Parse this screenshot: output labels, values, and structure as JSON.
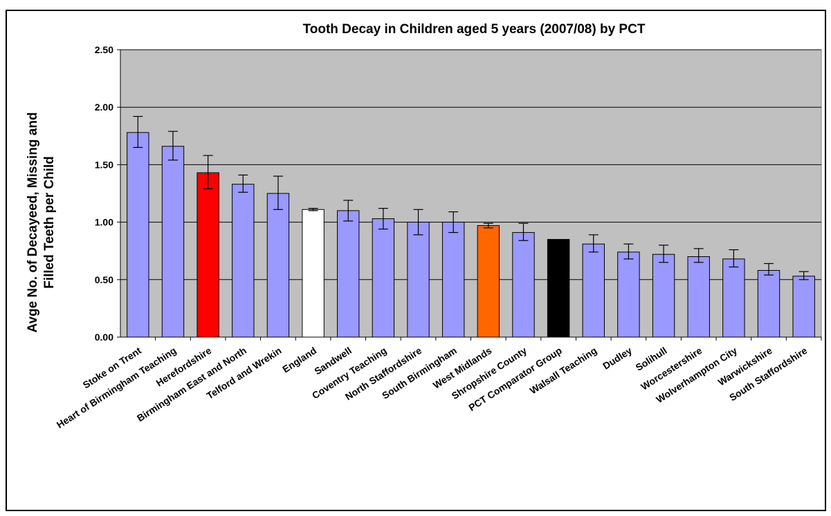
{
  "chart_data": {
    "type": "bar",
    "title": "Tooth Decay in Children aged 5 years (2007/08) by PCT",
    "xlabel": "",
    "ylabel_lines": [
      "Avge No. of Decayeed, Missing and",
      "Filled Teeth per Child"
    ],
    "ylim": [
      0,
      2.5
    ],
    "yticks": [
      "0.00",
      "0.50",
      "1.00",
      "1.50",
      "2.00",
      "2.50"
    ],
    "ytick_values": [
      0,
      0.5,
      1.0,
      1.5,
      2.0,
      2.5
    ],
    "grid": true,
    "plot_background": "#c0c0c0",
    "categories": [
      "Stoke on Trent",
      "Heart of Birmingham Teaching",
      "Herefordshire",
      "Birmingham East and North",
      "Telford and Wrekin",
      "England",
      "Sandwell",
      "Coventry Teaching",
      "North Staffordshire",
      "South Birmingham",
      "West Midlands",
      "Shropshire County",
      "PCT Comparator Group",
      "Walsall Teaching",
      "Dudley",
      "Solihull",
      "Worcestershire",
      "Wolverhampton City",
      "Warwickshire",
      "South Staffordshire"
    ],
    "values": [
      1.78,
      1.66,
      1.43,
      1.33,
      1.25,
      1.11,
      1.1,
      1.03,
      1.0,
      1.0,
      0.97,
      0.91,
      0.85,
      0.81,
      0.74,
      0.72,
      0.7,
      0.68,
      0.58,
      0.53
    ],
    "error_low": [
      1.65,
      1.54,
      1.29,
      1.26,
      1.11,
      1.1,
      1.01,
      0.94,
      0.89,
      0.91,
      0.95,
      0.84,
      null,
      0.74,
      0.68,
      0.65,
      0.65,
      0.61,
      0.54,
      0.5
    ],
    "error_high": [
      1.92,
      1.79,
      1.58,
      1.41,
      1.4,
      1.12,
      1.19,
      1.12,
      1.11,
      1.09,
      0.99,
      0.99,
      null,
      0.89,
      0.81,
      0.8,
      0.77,
      0.76,
      0.64,
      0.57
    ],
    "colors": [
      "#9999ff",
      "#9999ff",
      "#ff0000",
      "#9999ff",
      "#9999ff",
      "#ffffff",
      "#9999ff",
      "#9999ff",
      "#9999ff",
      "#9999ff",
      "#ff6600",
      "#9999ff",
      "#000000",
      "#9999ff",
      "#9999ff",
      "#9999ff",
      "#9999ff",
      "#9999ff",
      "#9999ff",
      "#9999ff"
    ]
  }
}
